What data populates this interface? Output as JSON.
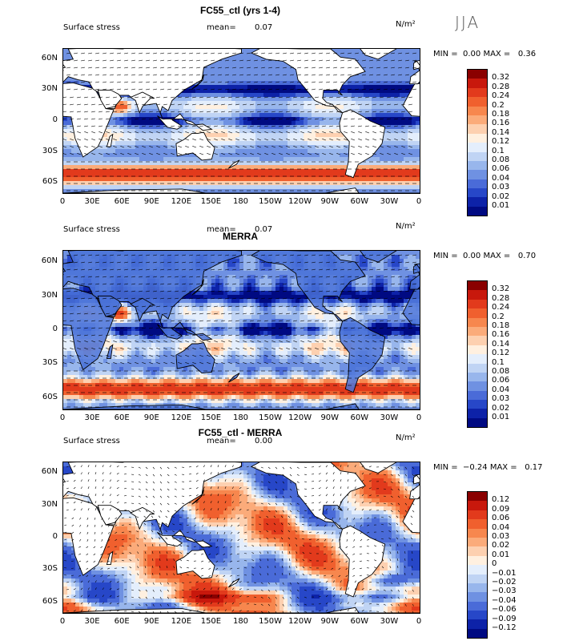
{
  "season": "JJA",
  "panels": [
    {
      "title": "FC55_ctl (yrs 1-4)",
      "left_label": "Surface stress",
      "mean_label": "mean=",
      "mean_value": "0.07",
      "units": "N/m²",
      "min_label": "MIN =",
      "min_value": "0.00",
      "max_label": "MAX =",
      "max_value": "0.36",
      "colorbar_labels": [
        "0.32",
        "0.28",
        "0.24",
        "0.2",
        "0.18",
        "0.16",
        "0.14",
        "0.12",
        "0.1",
        "0.08",
        "0.06",
        "0.04",
        "0.03",
        "0.02",
        "0.01"
      ],
      "colorbar_colors": [
        "#8a0000",
        "#c8180c",
        "#e23a1c",
        "#f0602e",
        "#f7874e",
        "#fbab7a",
        "#fdd0b0",
        "#fff0e0",
        "#e4eefc",
        "#c0d4f4",
        "#98b6ec",
        "#6f91e2",
        "#4a6bd8",
        "#2747c8",
        "#0d22a8",
        "#000a82"
      ]
    },
    {
      "title": "MERRA",
      "left_label": "Surface stress",
      "mean_label": "mean=",
      "mean_value": "0.07",
      "units": "N/m²",
      "min_label": "MIN =",
      "min_value": "0.00",
      "max_label": "MAX =",
      "max_value": "0.70",
      "colorbar_labels": [
        "0.32",
        "0.28",
        "0.24",
        "0.2",
        "0.18",
        "0.16",
        "0.14",
        "0.12",
        "0.1",
        "0.08",
        "0.06",
        "0.04",
        "0.03",
        "0.02",
        "0.01"
      ],
      "colorbar_colors": [
        "#8a0000",
        "#c8180c",
        "#e23a1c",
        "#f0602e",
        "#f7874e",
        "#fbab7a",
        "#fdd0b0",
        "#fff0e0",
        "#e4eefc",
        "#c0d4f4",
        "#98b6ec",
        "#6f91e2",
        "#4a6bd8",
        "#2747c8",
        "#0d22a8",
        "#000a82"
      ]
    },
    {
      "title": "FC55_ctl - MERRA",
      "left_label": "Surface stress",
      "mean_label": "mean=",
      "mean_value": "0.00",
      "units": "N/m²",
      "min_label": "MIN =",
      "min_value": "−0.24",
      "max_label": "MAX =",
      "max_value": "0.17",
      "colorbar_labels": [
        "0.12",
        "0.09",
        "0.06",
        "0.04",
        "0.03",
        "0.02",
        "0.01",
        "0",
        "−0.01",
        "−0.02",
        "−0.03",
        "−0.04",
        "−0.06",
        "−0.09",
        "−0.12"
      ],
      "colorbar_colors": [
        "#8a0000",
        "#c8180c",
        "#e23a1c",
        "#f0602e",
        "#f7874e",
        "#fbab7a",
        "#fdd0b0",
        "#fff0e0",
        "#e4eefc",
        "#c0d4f4",
        "#98b6ec",
        "#6f91e2",
        "#4a6bd8",
        "#2747c8",
        "#0d22a8",
        "#000a82"
      ]
    }
  ],
  "lat_ticks": [
    "60N",
    "30N",
    "0",
    "30S",
    "60S"
  ],
  "lon_ticks": [
    "0",
    "30E",
    "60E",
    "90E",
    "120E",
    "150E",
    "180",
    "150W",
    "120W",
    "90W",
    "60W",
    "30W",
    "0"
  ]
}
